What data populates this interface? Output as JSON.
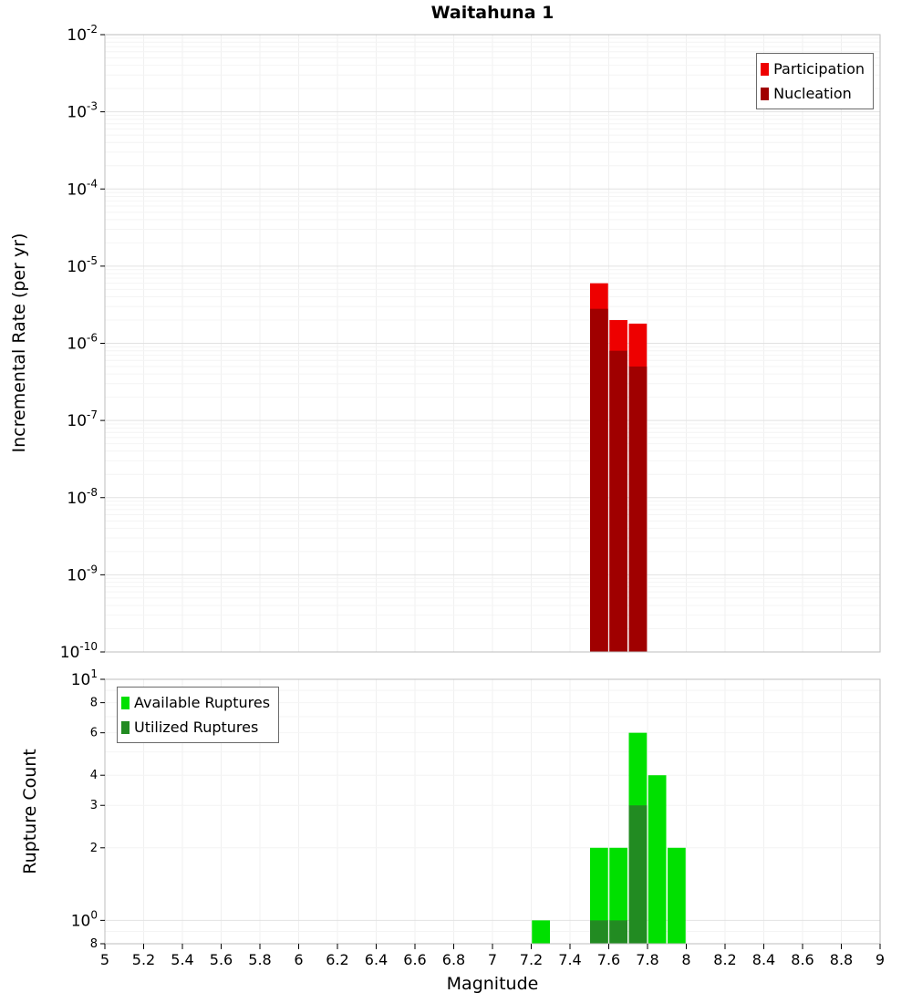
{
  "title": "Waitahuna 1",
  "chart_data": [
    {
      "type": "bar",
      "title": "Waitahuna 1",
      "xlabel": "Magnitude",
      "ylabel": "Incremental Rate (per yr)",
      "yscale": "log",
      "ylim": [
        1e-10,
        0.01
      ],
      "xlim": [
        5,
        9
      ],
      "grid_x_step": 0.2,
      "grid": true,
      "legend_position": "top-right",
      "yticks": [
        {
          "value": 0.01,
          "base": "10",
          "exp": "-2"
        },
        {
          "value": 0.001,
          "base": "10",
          "exp": "-3"
        },
        {
          "value": 0.0001,
          "base": "10",
          "exp": "-4"
        },
        {
          "value": 1e-05,
          "base": "10",
          "exp": "-5"
        },
        {
          "value": 1e-06,
          "base": "10",
          "exp": "-6"
        },
        {
          "value": 1e-07,
          "base": "10",
          "exp": "-7"
        },
        {
          "value": 1e-08,
          "base": "10",
          "exp": "-8"
        },
        {
          "value": 1e-09,
          "base": "10",
          "exp": "-9"
        },
        {
          "value": 1e-10,
          "base": "10",
          "exp": "-10"
        }
      ],
      "series": [
        {
          "name": "Participation",
          "color": "#ee0000",
          "bins": [
            {
              "x0": 7.5,
              "x1": 7.6,
              "y": 6e-06
            },
            {
              "x0": 7.6,
              "x1": 7.7,
              "y": 2e-06
            },
            {
              "x0": 7.7,
              "x1": 7.8,
              "y": 1.8e-06
            }
          ]
        },
        {
          "name": "Nucleation",
          "color": "#a00000",
          "bins": [
            {
              "x0": 7.5,
              "x1": 7.6,
              "y": 2.8e-06
            },
            {
              "x0": 7.6,
              "x1": 7.7,
              "y": 8e-07
            },
            {
              "x0": 7.7,
              "x1": 7.8,
              "y": 5e-07
            }
          ]
        }
      ]
    },
    {
      "type": "bar",
      "title": "",
      "xlabel": "Magnitude",
      "ylabel": "Rupture Count",
      "yscale": "log",
      "ylim": [
        0.8,
        10
      ],
      "xlim": [
        5,
        9
      ],
      "grid_x_step": 0.2,
      "grid": true,
      "legend_position": "top-left",
      "yticks": [
        {
          "value": 10,
          "base": "10",
          "exp": "1"
        },
        {
          "value": 8,
          "label": "8"
        },
        {
          "value": 6,
          "label": "6"
        },
        {
          "value": 4,
          "label": "4"
        },
        {
          "value": 3,
          "label": "3"
        },
        {
          "value": 2,
          "label": "2"
        },
        {
          "value": 1,
          "base": "10",
          "exp": "0"
        },
        {
          "value": 0.8,
          "label": "8"
        }
      ],
      "xticks": [
        {
          "value": 5,
          "label": "5"
        },
        {
          "value": 5.2,
          "label": "5.2"
        },
        {
          "value": 5.4,
          "label": "5.4"
        },
        {
          "value": 5.6,
          "label": "5.6"
        },
        {
          "value": 5.8,
          "label": "5.8"
        },
        {
          "value": 6,
          "label": "6"
        },
        {
          "value": 6.2,
          "label": "6.2"
        },
        {
          "value": 6.4,
          "label": "6.4"
        },
        {
          "value": 6.6,
          "label": "6.6"
        },
        {
          "value": 6.8,
          "label": "6.8"
        },
        {
          "value": 7,
          "label": "7"
        },
        {
          "value": 7.2,
          "label": "7.2"
        },
        {
          "value": 7.4,
          "label": "7.4"
        },
        {
          "value": 7.6,
          "label": "7.6"
        },
        {
          "value": 7.8,
          "label": "7.8"
        },
        {
          "value": 8,
          "label": "8"
        },
        {
          "value": 8.2,
          "label": "8.2"
        },
        {
          "value": 8.4,
          "label": "8.4"
        },
        {
          "value": 8.6,
          "label": "8.6"
        },
        {
          "value": 8.8,
          "label": "8.8"
        },
        {
          "value": 9,
          "label": "9"
        }
      ],
      "series": [
        {
          "name": "Available Ruptures",
          "color": "#00e000",
          "bins": [
            {
              "x0": 7.2,
              "x1": 7.3,
              "y": 1
            },
            {
              "x0": 7.5,
              "x1": 7.6,
              "y": 2
            },
            {
              "x0": 7.6,
              "x1": 7.7,
              "y": 2
            },
            {
              "x0": 7.7,
              "x1": 7.8,
              "y": 6
            },
            {
              "x0": 7.8,
              "x1": 7.9,
              "y": 4
            },
            {
              "x0": 7.9,
              "x1": 8.0,
              "y": 2
            }
          ]
        },
        {
          "name": "Utilized Ruptures",
          "color": "#228b22",
          "bins": [
            {
              "x0": 7.5,
              "x1": 7.6,
              "y": 1
            },
            {
              "x0": 7.6,
              "x1": 7.7,
              "y": 1
            },
            {
              "x0": 7.7,
              "x1": 7.8,
              "y": 3
            }
          ]
        }
      ]
    }
  ]
}
